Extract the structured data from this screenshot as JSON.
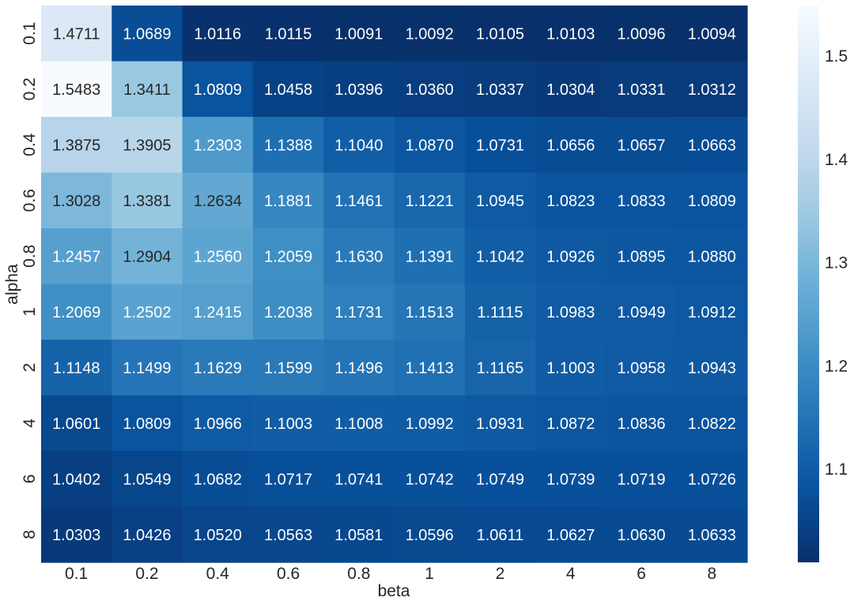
{
  "chart_data": {
    "type": "heatmap",
    "title": "",
    "xlabel": "beta",
    "ylabel": "alpha",
    "x_categories": [
      "0.1",
      "0.2",
      "0.4",
      "0.6",
      "0.8",
      "1",
      "2",
      "4",
      "6",
      "8"
    ],
    "y_categories": [
      "0.1",
      "0.2",
      "0.4",
      "0.6",
      "0.8",
      "1",
      "2",
      "4",
      "6",
      "8"
    ],
    "values": [
      [
        1.4711,
        1.0689,
        1.0116,
        1.0115,
        1.0091,
        1.0092,
        1.0105,
        1.0103,
        1.0096,
        1.0094
      ],
      [
        1.5483,
        1.3411,
        1.0809,
        1.0458,
        1.0396,
        1.036,
        1.0337,
        1.0304,
        1.0331,
        1.0312
      ],
      [
        1.3875,
        1.3905,
        1.2303,
        1.1388,
        1.104,
        1.087,
        1.0731,
        1.0656,
        1.0657,
        1.0663
      ],
      [
        1.3028,
        1.3381,
        1.2634,
        1.1881,
        1.1461,
        1.1221,
        1.0945,
        1.0823,
        1.0833,
        1.0809
      ],
      [
        1.2457,
        1.2904,
        1.256,
        1.2059,
        1.163,
        1.1391,
        1.1042,
        1.0926,
        1.0895,
        1.088
      ],
      [
        1.2069,
        1.2502,
        1.2415,
        1.2038,
        1.1731,
        1.1513,
        1.1115,
        1.0983,
        1.0949,
        1.0912
      ],
      [
        1.1148,
        1.1499,
        1.1629,
        1.1599,
        1.1496,
        1.1413,
        1.1165,
        1.1003,
        1.0958,
        1.0943
      ],
      [
        1.0601,
        1.0809,
        1.0966,
        1.1003,
        1.1008,
        1.0992,
        1.0931,
        1.0872,
        1.0836,
        1.0822
      ],
      [
        1.0402,
        1.0549,
        1.0682,
        1.0717,
        1.0741,
        1.0742,
        1.0749,
        1.0739,
        1.0719,
        1.0726
      ],
      [
        1.0303,
        1.0426,
        1.052,
        1.0563,
        1.0581,
        1.0596,
        1.0611,
        1.0627,
        1.063,
        1.0633
      ]
    ],
    "value_format": "4 decimals",
    "colormap": "Blues_r",
    "colorbar": {
      "range": [
        1.0091,
        1.5483
      ],
      "ticks": [
        1.1,
        1.2,
        1.3,
        1.4,
        1.5
      ],
      "tick_labels": [
        "1.1",
        "1.2",
        "1.3",
        "1.4",
        "1.5"
      ]
    },
    "annotation_colors": {
      "light_cell": "#262626",
      "dark_cell": "#ffffff"
    },
    "grid": false,
    "legend": "colorbar-right"
  }
}
